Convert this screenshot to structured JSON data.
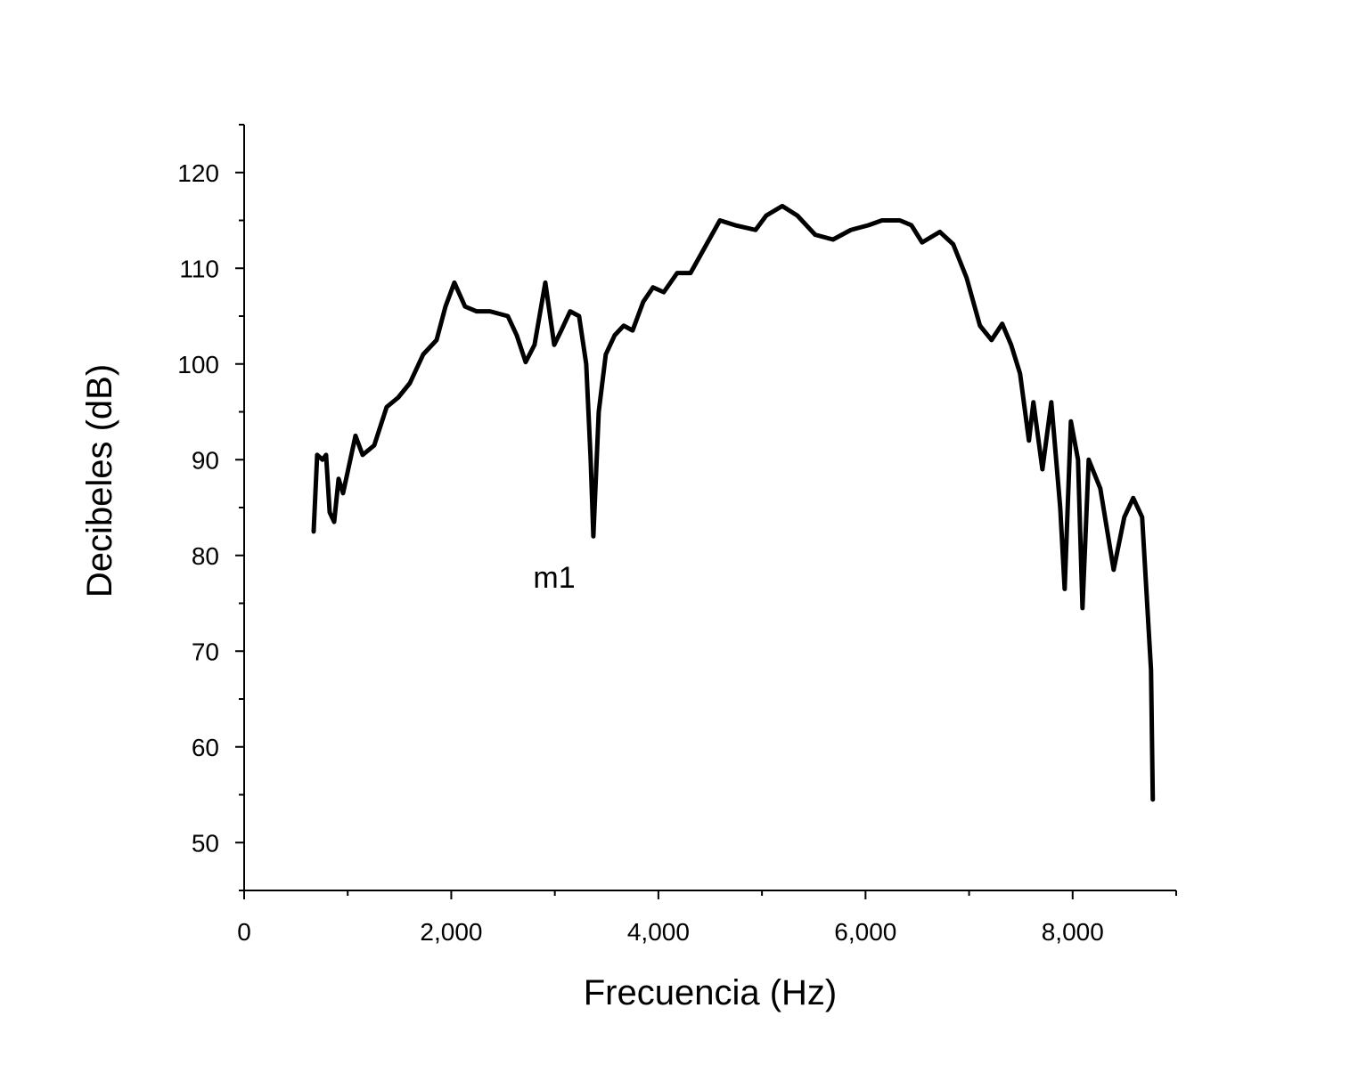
{
  "chart_data": {
    "type": "line",
    "xlabel": "Frecuencia (Hz)",
    "ylabel": "Decibeles (dB)",
    "annotations": [
      "m1"
    ],
    "xlim": [
      0,
      9000
    ],
    "ylim": [
      45,
      125
    ],
    "xticks": [
      0,
      {
        "value": 2000,
        "label": "2,000"
      },
      {
        "value": 4000,
        "label": "4,000"
      },
      {
        "value": 6000,
        "label": "6,000"
      },
      {
        "value": 8000,
        "label": "8,000"
      }
    ],
    "xminor_ticks": [
      1000,
      3000,
      5000,
      7000,
      9000
    ],
    "yticks": [
      50,
      60,
      70,
      80,
      90,
      100,
      110,
      120
    ],
    "yminor_ticks": [
      45,
      55,
      65,
      75,
      85,
      95,
      105,
      115,
      125
    ],
    "grid": false,
    "x": [
      671,
      705,
      757,
      791,
      826,
      869,
      912,
      955,
      1015,
      1075,
      1144,
      1256,
      1376,
      1488,
      1600,
      1729,
      1858,
      1944,
      2030,
      2133,
      2245,
      2374,
      2546,
      2632,
      2718,
      2804,
      2908,
      2994,
      3062,
      3148,
      3234,
      3303,
      3346,
      3372,
      3424,
      3492,
      3578,
      3665,
      3751,
      3854,
      3948,
      4052,
      4181,
      4310,
      4439,
      4594,
      4740,
      4938,
      5041,
      5196,
      5342,
      5514,
      5686,
      5858,
      6030,
      6159,
      6331,
      6443,
      6546,
      6718,
      6847,
      6976,
      7105,
      7217,
      7320,
      7406,
      7492,
      7578,
      7621,
      7708,
      7794,
      7880,
      7923,
      7983,
      8052,
      8095,
      8155,
      8267,
      8396,
      8499,
      8585,
      8671,
      8757,
      8774
    ],
    "series": [
      {
        "color": "#000000",
        "values": [
          82.5,
          90.5,
          90,
          90.5,
          84.5,
          83.5,
          88,
          86.5,
          89.5,
          92.5,
          90.5,
          91.5,
          95.5,
          96.5,
          98,
          101,
          102.5,
          106,
          108.5,
          106,
          105.5,
          105.5,
          105,
          103,
          100.2,
          102,
          108.5,
          102,
          103.5,
          105.5,
          105,
          100,
          90,
          82,
          95,
          101,
          103,
          104,
          103.5,
          106.5,
          108,
          107.5,
          109.5,
          109.5,
          112,
          115,
          114.5,
          114,
          115.5,
          116.5,
          115.5,
          113.5,
          113,
          114,
          114.5,
          115,
          115,
          114.5,
          112.7,
          113.8,
          112.5,
          109,
          104,
          102.5,
          104.2,
          102,
          99,
          92,
          96,
          89,
          96,
          85,
          76.5,
          94,
          90,
          74.5,
          90,
          87,
          78.5,
          84,
          86,
          84,
          68,
          54.5
        ]
      }
    ]
  }
}
